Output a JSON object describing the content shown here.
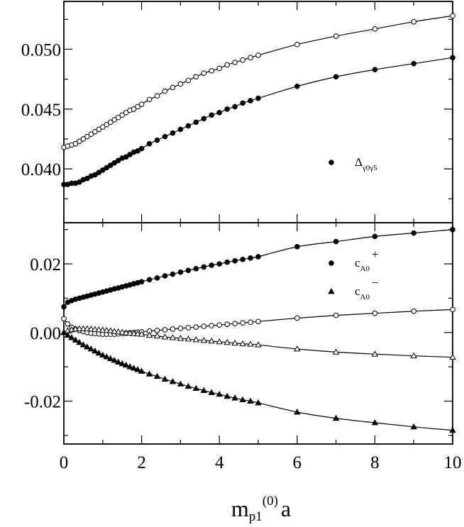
{
  "chart_data": [
    {
      "type": "scatter",
      "panel": "top",
      "xlim": [
        0,
        10
      ],
      "ylim": [
        0.0355,
        0.054
      ],
      "yticks": [
        0.04,
        0.045,
        0.05
      ],
      "ytick_labels": [
        "0.040",
        "0.045",
        "0.050"
      ],
      "legend": {
        "placement": "center-right",
        "entries": [
          {
            "marker": "filled-circle",
            "symbol": "Δ",
            "subscript": "γ0γ5"
          }
        ]
      },
      "series": [
        {
          "marker": "open-circle",
          "x": [
            0,
            0.1,
            0.2,
            0.3,
            0.4,
            0.5,
            0.6,
            0.7,
            0.8,
            0.9,
            1.0,
            1.1,
            1.2,
            1.3,
            1.4,
            1.5,
            1.6,
            1.7,
            1.8,
            1.9,
            2.0,
            2.2,
            2.4,
            2.6,
            2.8,
            3.0,
            3.2,
            3.4,
            3.6,
            3.8,
            4.0,
            4.2,
            4.4,
            4.6,
            4.8,
            5.0,
            6,
            7,
            8,
            9,
            10
          ],
          "y": [
            0.0418,
            0.0419,
            0.042,
            0.0421,
            0.0423,
            0.0425,
            0.0427,
            0.0429,
            0.0431,
            0.0433,
            0.0435,
            0.0437,
            0.0439,
            0.0441,
            0.0443,
            0.0445,
            0.0447,
            0.0449,
            0.045,
            0.0452,
            0.0454,
            0.0458,
            0.0461,
            0.0465,
            0.0468,
            0.0471,
            0.0474,
            0.0477,
            0.048,
            0.0482,
            0.0484,
            0.0487,
            0.0489,
            0.0491,
            0.0493,
            0.0495,
            0.0504,
            0.0511,
            0.0517,
            0.0523,
            0.0528
          ]
        },
        {
          "marker": "filled-circle",
          "x": [
            0,
            0.1,
            0.2,
            0.3,
            0.4,
            0.5,
            0.6,
            0.7,
            0.8,
            0.9,
            1.0,
            1.1,
            1.2,
            1.3,
            1.4,
            1.5,
            1.6,
            1.7,
            1.8,
            1.9,
            2.0,
            2.2,
            2.4,
            2.6,
            2.8,
            3.0,
            3.2,
            3.4,
            3.6,
            3.8,
            4.0,
            4.2,
            4.4,
            4.6,
            4.8,
            5.0,
            6,
            7,
            8,
            9,
            10
          ],
          "y": [
            0.0387,
            0.0387,
            0.0388,
            0.0388,
            0.0389,
            0.0391,
            0.0392,
            0.0394,
            0.0395,
            0.0397,
            0.0399,
            0.0401,
            0.0403,
            0.0405,
            0.0407,
            0.0409,
            0.041,
            0.0412,
            0.0414,
            0.0415,
            0.0417,
            0.0421,
            0.0424,
            0.0427,
            0.043,
            0.0433,
            0.0436,
            0.0439,
            0.0442,
            0.0445,
            0.0447,
            0.045,
            0.0452,
            0.0455,
            0.0457,
            0.0459,
            0.0469,
            0.0477,
            0.0483,
            0.0488,
            0.0493
          ]
        }
      ]
    },
    {
      "type": "scatter",
      "panel": "bottom",
      "xlim": [
        0,
        10
      ],
      "ylim": [
        -0.0325,
        0.032
      ],
      "yticks": [
        -0.02,
        0.0,
        0.02
      ],
      "ytick_labels": [
        "-0.02",
        "0.00",
        "0.02"
      ],
      "xticks": [
        0,
        2,
        4,
        6,
        8,
        10
      ],
      "xtick_labels": [
        "0",
        "2",
        "4",
        "6",
        "8",
        "10"
      ],
      "xlabel": {
        "main": "m",
        "sub": "p1",
        "sup": "(0)",
        "tail": "a"
      },
      "legend": {
        "placement": "top-right",
        "entries": [
          {
            "marker": "filled-circle",
            "symbol": "c",
            "subscript": "A0",
            "superscript": "+"
          },
          {
            "marker": "filled-triangle",
            "symbol": "c",
            "subscript": "A0",
            "superscript": "−"
          }
        ]
      },
      "series": [
        {
          "marker": "filled-circle",
          "x": [
            0,
            0.1,
            0.2,
            0.3,
            0.4,
            0.5,
            0.6,
            0.7,
            0.8,
            0.9,
            1.0,
            1.1,
            1.2,
            1.3,
            1.4,
            1.5,
            1.6,
            1.7,
            1.8,
            1.9,
            2.0,
            2.2,
            2.4,
            2.6,
            2.8,
            3.0,
            3.2,
            3.4,
            3.6,
            3.8,
            4.0,
            4.2,
            4.4,
            4.6,
            4.8,
            5.0,
            6,
            7,
            8,
            9,
            10
          ],
          "y": [
            0.0075,
            0.0088,
            0.0093,
            0.0097,
            0.01,
            0.0103,
            0.0106,
            0.0109,
            0.0112,
            0.0115,
            0.0118,
            0.0121,
            0.0124,
            0.0127,
            0.013,
            0.0133,
            0.0136,
            0.0139,
            0.0142,
            0.0145,
            0.0148,
            0.0154,
            0.0159,
            0.0165,
            0.017,
            0.0176,
            0.0181,
            0.0186,
            0.0191,
            0.0196,
            0.02,
            0.0205,
            0.0209,
            0.0213,
            0.0217,
            0.0221,
            0.025,
            0.0265,
            0.028,
            0.029,
            0.03
          ]
        },
        {
          "marker": "open-circle",
          "x": [
            0,
            0.1,
            0.2,
            0.3,
            0.4,
            0.5,
            0.6,
            0.7,
            0.8,
            0.9,
            1.0,
            1.1,
            1.2,
            1.3,
            1.4,
            1.5,
            1.6,
            1.7,
            1.8,
            1.9,
            2.0,
            2.2,
            2.4,
            2.6,
            2.8,
            3.0,
            3.2,
            3.4,
            3.6,
            3.8,
            4.0,
            4.2,
            4.4,
            4.6,
            4.8,
            5.0,
            6,
            7,
            8,
            9,
            10
          ],
          "y": [
            0.004,
            0.0025,
            0.0015,
            0.001,
            0.0006,
            0.0003,
            0.0,
            -0.0002,
            -0.0003,
            -0.0004,
            -0.0005,
            -0.0005,
            -0.0005,
            -0.0005,
            -0.0004,
            -0.0003,
            -0.0002,
            -0.0001,
            0.0,
            0.0001,
            0.0002,
            0.0004,
            0.0006,
            0.0008,
            0.001,
            0.0012,
            0.0014,
            0.0016,
            0.0018,
            0.002,
            0.0022,
            0.0024,
            0.0026,
            0.0028,
            0.003,
            0.0032,
            0.0042,
            0.005,
            0.0056,
            0.0062,
            0.0067
          ]
        },
        {
          "marker": "open-triangle",
          "x": [
            0,
            0.1,
            0.2,
            0.3,
            0.4,
            0.5,
            0.6,
            0.7,
            0.8,
            0.9,
            1.0,
            1.1,
            1.2,
            1.3,
            1.4,
            1.5,
            1.6,
            1.7,
            1.8,
            1.9,
            2.0,
            2.2,
            2.4,
            2.6,
            2.8,
            3.0,
            3.2,
            3.4,
            3.6,
            3.8,
            4.0,
            4.2,
            4.4,
            4.6,
            4.8,
            5.0,
            6,
            7,
            8,
            9,
            10
          ],
          "y": [
            0.0,
            0.0005,
            0.0008,
            0.001,
            0.0011,
            0.0011,
            0.0011,
            0.001,
            0.0009,
            0.0008,
            0.0007,
            0.0006,
            0.0005,
            0.0003,
            0.0002,
            0.0001,
            -0.0001,
            -0.0002,
            -0.0003,
            -0.0004,
            -0.0005,
            -0.0008,
            -0.001,
            -0.0013,
            -0.0015,
            -0.0017,
            -0.0019,
            -0.0021,
            -0.0023,
            -0.0025,
            -0.0027,
            -0.0029,
            -0.0031,
            -0.0033,
            -0.0034,
            -0.0036,
            -0.0048,
            -0.0057,
            -0.0063,
            -0.0068,
            -0.0072
          ]
        },
        {
          "marker": "filled-triangle",
          "x": [
            0,
            0.1,
            0.2,
            0.3,
            0.4,
            0.5,
            0.6,
            0.7,
            0.8,
            0.9,
            1.0,
            1.1,
            1.2,
            1.3,
            1.4,
            1.5,
            1.6,
            1.7,
            1.8,
            1.9,
            2.0,
            2.2,
            2.4,
            2.6,
            2.8,
            3.0,
            3.2,
            3.4,
            3.6,
            3.8,
            4.0,
            4.2,
            4.4,
            4.6,
            4.8,
            5.0,
            6,
            7,
            8,
            9,
            10
          ],
          "y": [
            0.0,
            -0.0008,
            -0.0015,
            -0.0022,
            -0.0029,
            -0.0036,
            -0.0042,
            -0.0048,
            -0.0054,
            -0.006,
            -0.0066,
            -0.0071,
            -0.0076,
            -0.0081,
            -0.0086,
            -0.0091,
            -0.0095,
            -0.01,
            -0.0104,
            -0.0108,
            -0.0113,
            -0.0121,
            -0.0128,
            -0.0136,
            -0.0143,
            -0.015,
            -0.0157,
            -0.0163,
            -0.0169,
            -0.0175,
            -0.018,
            -0.0186,
            -0.0191,
            -0.0196,
            -0.02,
            -0.0205,
            -0.0232,
            -0.025,
            -0.0263,
            -0.0275,
            -0.0285
          ]
        }
      ]
    }
  ]
}
